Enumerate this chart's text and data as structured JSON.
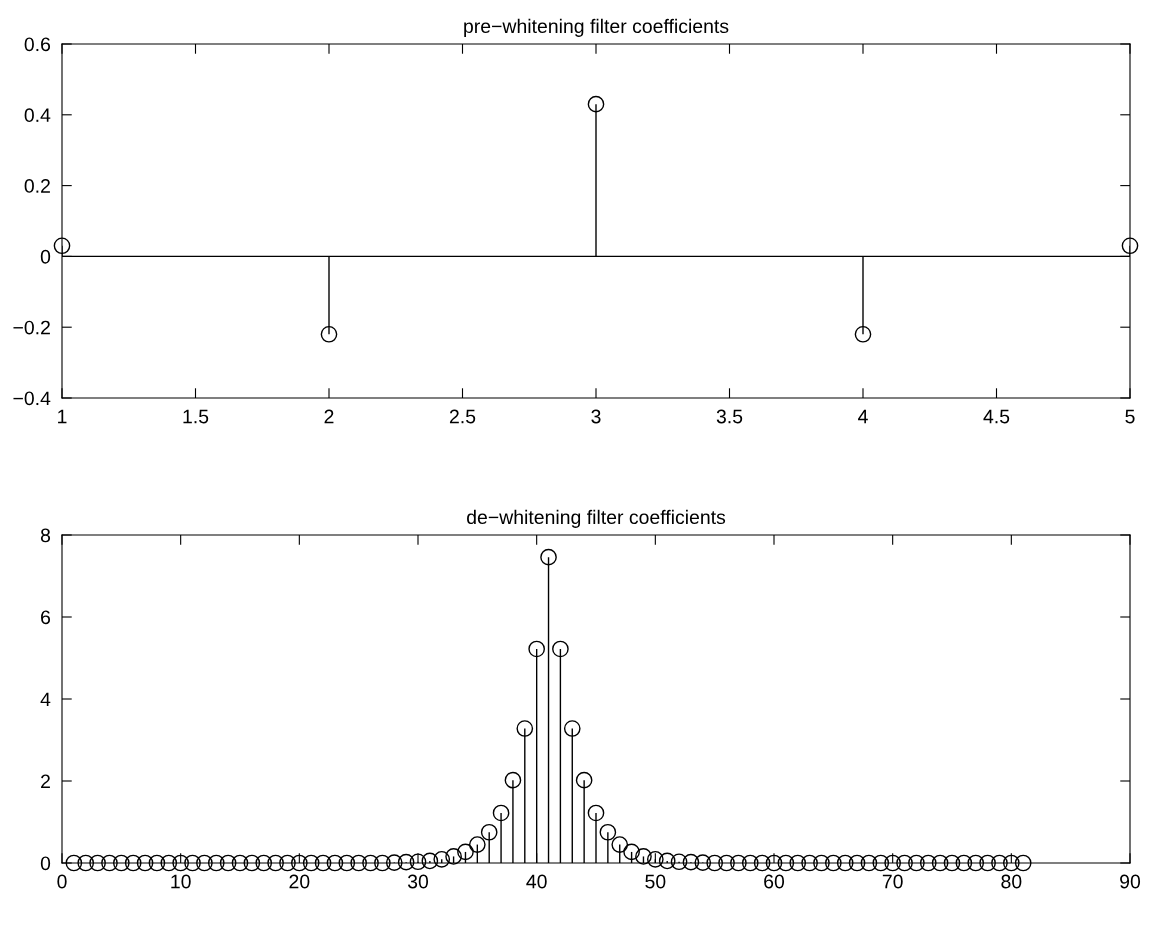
{
  "chart_data": [
    {
      "type": "lollipop",
      "title": "pre−whitening filter coefficients",
      "x": [
        1,
        2,
        3,
        4,
        5
      ],
      "series": [
        {
          "color": "#000000",
          "values": [
            0.03,
            -0.22,
            0.43,
            -0.22,
            0.03
          ]
        }
      ],
      "xlim": [
        1,
        5
      ],
      "xticks": [
        1,
        1.5,
        2,
        2.5,
        3,
        3.5,
        4,
        4.5,
        5
      ],
      "ylim": [
        -0.4,
        0.6
      ],
      "yticks": [
        -0.4,
        -0.2,
        0,
        0.2,
        0.4,
        0.6
      ],
      "marker": "circle",
      "grid": false,
      "ref_lines": [
        {
          "axis": "y",
          "value": 0,
          "color": "#000000"
        }
      ]
    },
    {
      "type": "lollipop",
      "title": "de−whitening filter coefficients",
      "x": [
        1,
        2,
        3,
        4,
        5,
        6,
        7,
        8,
        9,
        10,
        11,
        12,
        13,
        14,
        15,
        16,
        17,
        18,
        19,
        20,
        21,
        22,
        23,
        24,
        25,
        26,
        27,
        28,
        29,
        30,
        31,
        32,
        33,
        34,
        35,
        36,
        37,
        38,
        39,
        40,
        41,
        42,
        43,
        44,
        45,
        46,
        47,
        48,
        49,
        50,
        51,
        52,
        53,
        54,
        55,
        56,
        57,
        58,
        59,
        60,
        61,
        62,
        63,
        64,
        65,
        66,
        67,
        68,
        69,
        70,
        71,
        72,
        73,
        74,
        75,
        76,
        77,
        78,
        79,
        80,
        81
      ],
      "series": [
        {
          "color": "#000000",
          "values": [
            0,
            0,
            0,
            0,
            0,
            0,
            0,
            0,
            0,
            0,
            0,
            0,
            0,
            0,
            0,
            0,
            0,
            0,
            0,
            0,
            0,
            0,
            0,
            0,
            0,
            0,
            0,
            0.01,
            0.02,
            0.03,
            0.05,
            0.09,
            0.16,
            0.27,
            0.45,
            0.75,
            1.22,
            2.02,
            3.28,
            5.22,
            7.46,
            5.22,
            3.28,
            2.02,
            1.22,
            0.75,
            0.45,
            0.27,
            0.16,
            0.09,
            0.05,
            0.03,
            0.02,
            0.01,
            0,
            0,
            0,
            0,
            0,
            0,
            0,
            0,
            0,
            0,
            0,
            0,
            0,
            0,
            0,
            0,
            0,
            0,
            0,
            0,
            0,
            0,
            0,
            0,
            0,
            0,
            0
          ]
        }
      ],
      "xlim": [
        0,
        90
      ],
      "xticks": [
        0,
        10,
        20,
        30,
        40,
        50,
        60,
        70,
        80,
        90
      ],
      "ylim": [
        0,
        8
      ],
      "yticks": [
        0,
        2,
        4,
        6,
        8
      ],
      "marker": "circle",
      "grid": false
    }
  ]
}
